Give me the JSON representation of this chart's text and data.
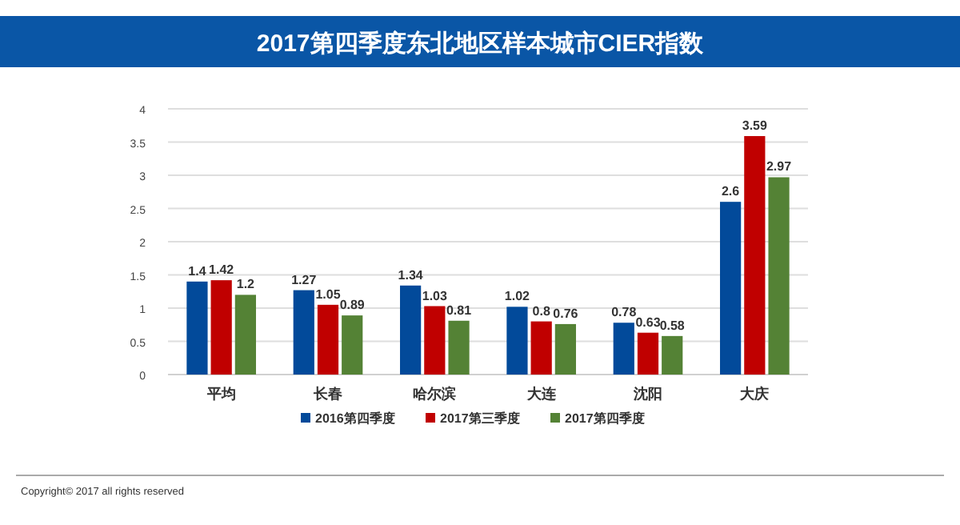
{
  "chart_data": {
    "type": "bar",
    "title": "2017第四季度东北地区样本城市CIER指数",
    "categories": [
      "平均",
      "长春",
      "哈尔滨",
      "大连",
      "沈阳",
      "大庆"
    ],
    "series": [
      {
        "name": "2016第四季度",
        "color": "#024a9a",
        "values": [
          1.4,
          1.27,
          1.34,
          1.02,
          0.78,
          2.6
        ]
      },
      {
        "name": "2017第三季度",
        "color": "#c00000",
        "values": [
          1.42,
          1.05,
          1.03,
          0.8,
          0.63,
          3.59
        ]
      },
      {
        "name": "2017第四季度",
        "color": "#548235",
        "values": [
          1.2,
          0.89,
          0.81,
          0.76,
          0.58,
          2.97
        ]
      }
    ],
    "ylim": [
      0,
      4
    ],
    "yticks": [
      0,
      0.5,
      1,
      1.5,
      2,
      2.5,
      3,
      3.5,
      4
    ],
    "grid": "y",
    "legend": "bottom",
    "data_labels": true,
    "annotations": [
      "Copyright© 2017 all rights reserved"
    ]
  }
}
